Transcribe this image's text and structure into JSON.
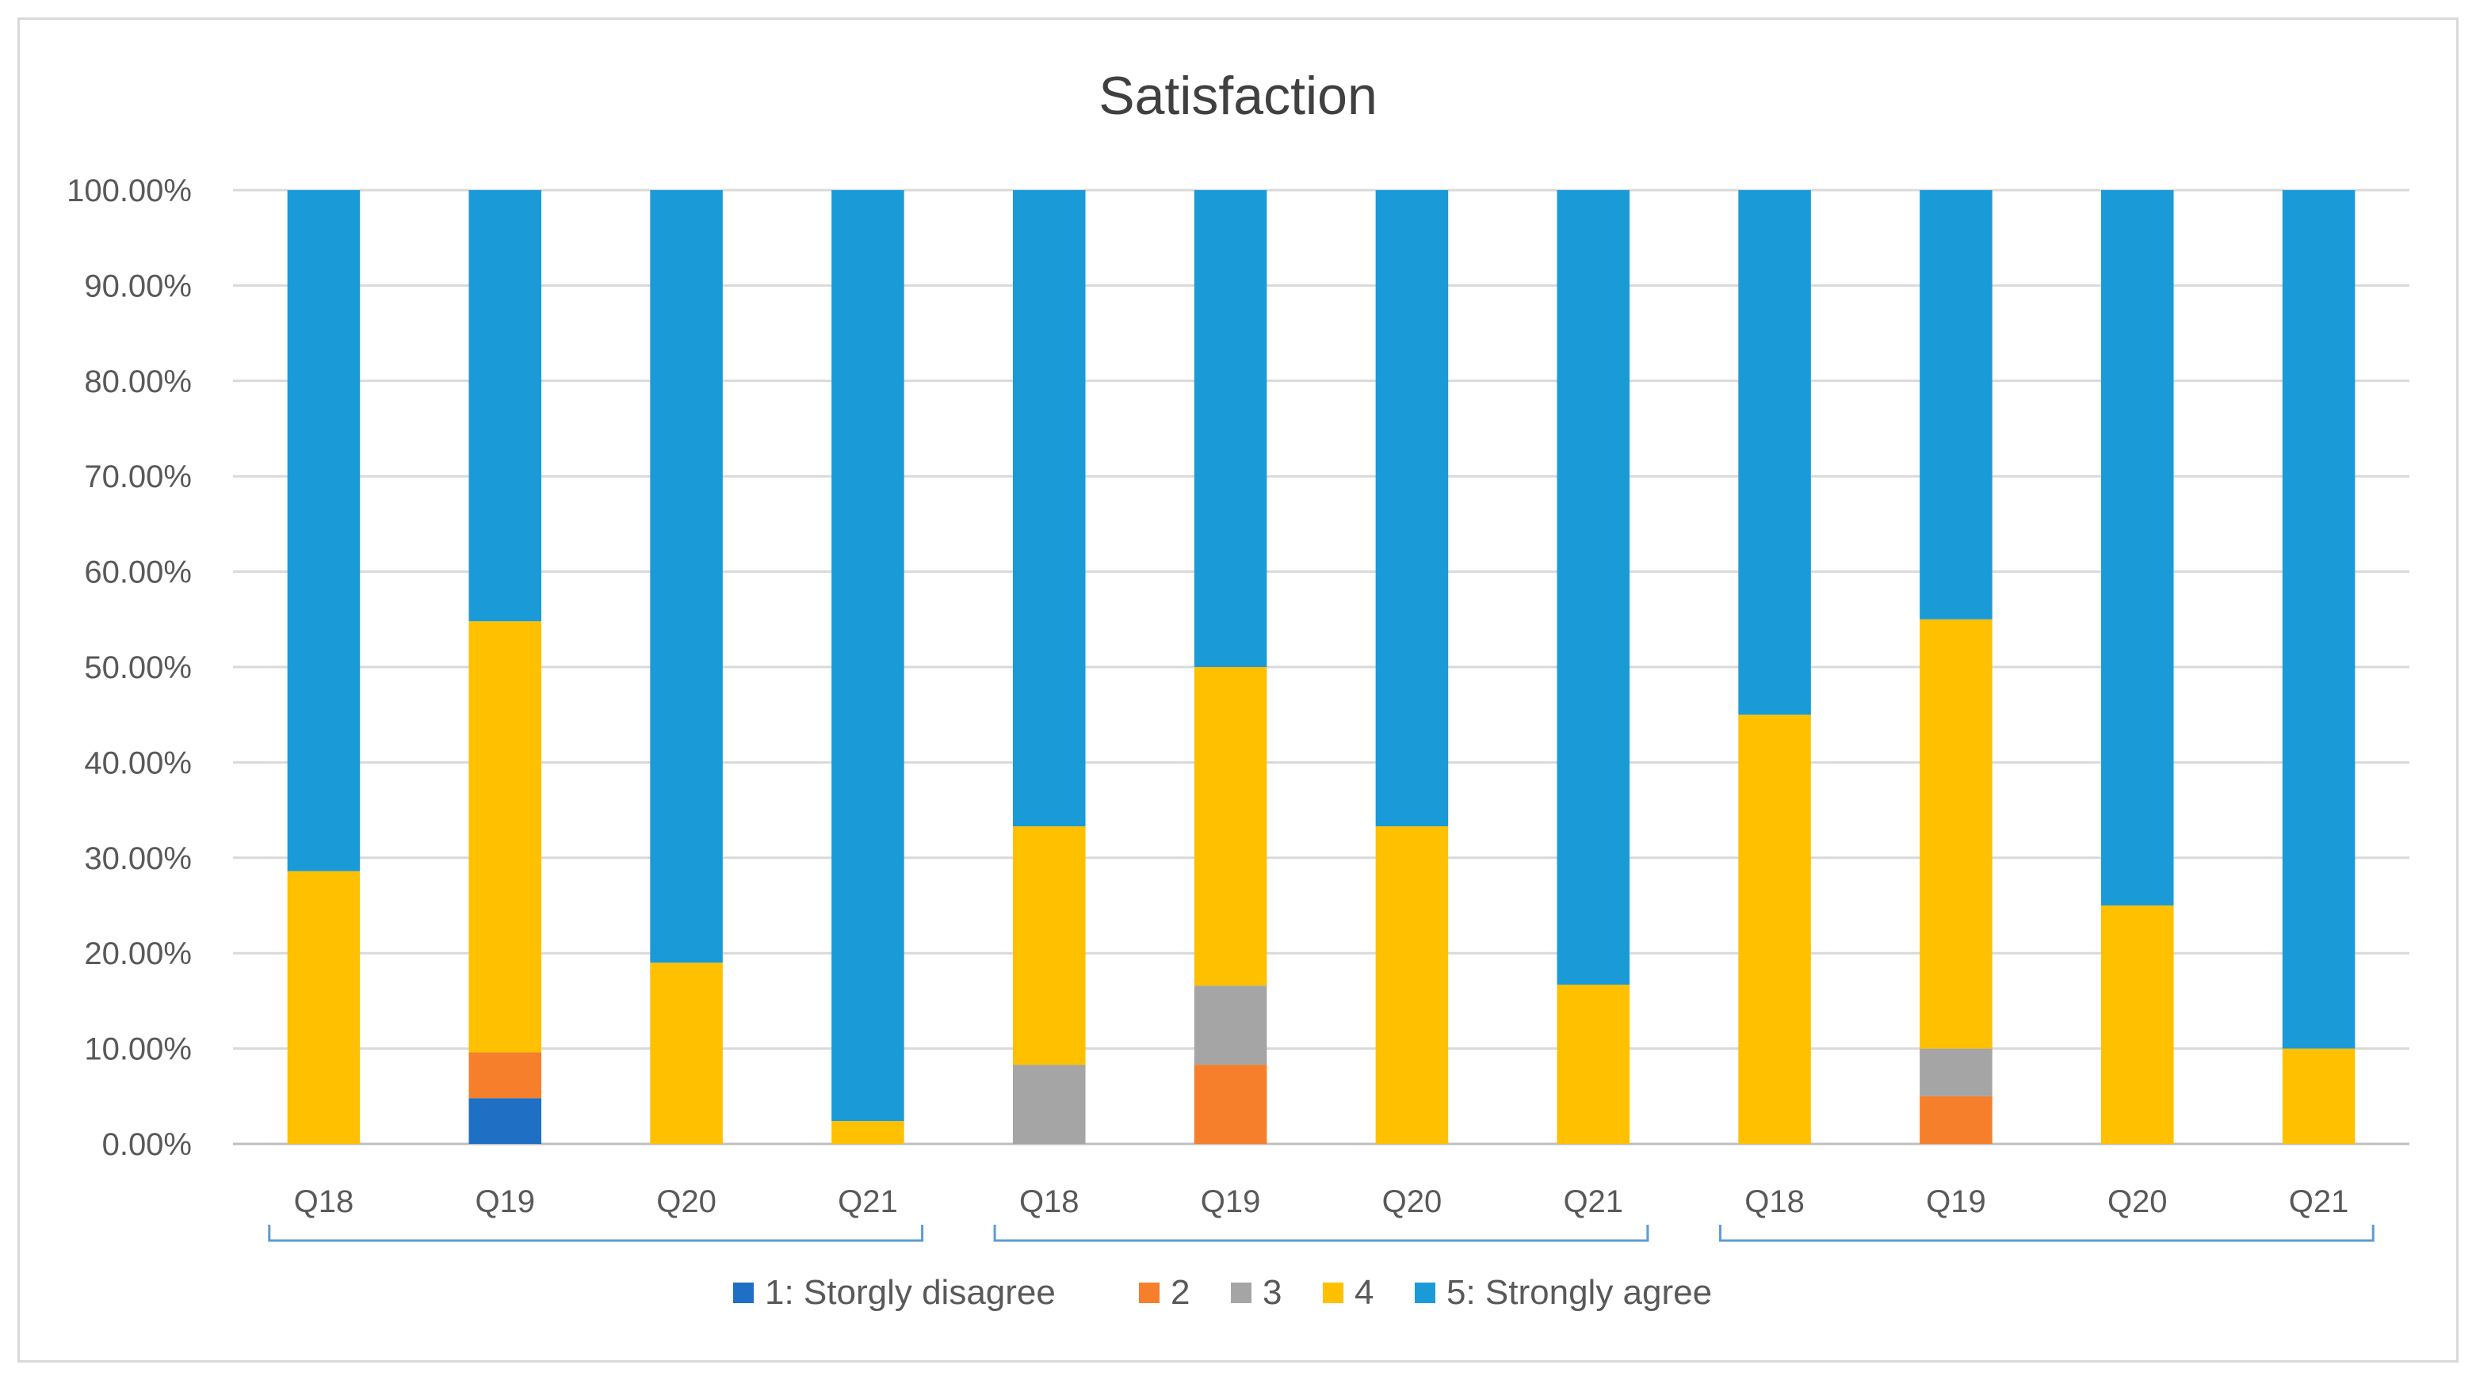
{
  "chart_data": {
    "type": "bar",
    "stacked": true,
    "percent_stacked": true,
    "title": "Satisfaction",
    "categories": [
      "Q18",
      "Q19",
      "Q20",
      "Q21",
      "Q18",
      "Q19",
      "Q20",
      "Q21",
      "Q18",
      "Q19",
      "Q20",
      "Q21"
    ],
    "group_brackets": 3,
    "y_ticks": [
      "0.00%",
      "10.00%",
      "20.00%",
      "30.00%",
      "40.00%",
      "50.00%",
      "60.00%",
      "70.00%",
      "80.00%",
      "90.00%",
      "100.00%"
    ],
    "ylim": [
      0,
      100
    ],
    "grid": true,
    "legend_position": "bottom",
    "series": [
      {
        "name": "1: Storgly disagree",
        "color": "#1f6fc5",
        "values": [
          0,
          4.8,
          0,
          0,
          0,
          0,
          0,
          0,
          0,
          0,
          0,
          0
        ]
      },
      {
        "name": "2",
        "color": "#f57f2a",
        "values": [
          0,
          4.8,
          0,
          0,
          0,
          8.3,
          0,
          0,
          0,
          5,
          0,
          0
        ]
      },
      {
        "name": "3",
        "color": "#a5a5a5",
        "values": [
          0,
          0,
          0,
          0,
          8.3,
          8.3,
          0,
          0,
          0,
          5,
          0,
          0
        ]
      },
      {
        "name": "4",
        "color": "#ffc000",
        "values": [
          28.6,
          45.2,
          19,
          2.4,
          25,
          33.4,
          33.3,
          16.7,
          45,
          45,
          25,
          10
        ]
      },
      {
        "name": "5: Strongly agree",
        "color": "#1a9bd7",
        "values": [
          71.4,
          45.2,
          81,
          97.6,
          66.7,
          50,
          66.7,
          83.3,
          55,
          45,
          75,
          90
        ]
      }
    ]
  },
  "colors": {
    "grid": "#d9d9d9",
    "axis": "#bfbfbf",
    "bracket": "#5b9bd5",
    "frame": "#d9d9d9"
  }
}
